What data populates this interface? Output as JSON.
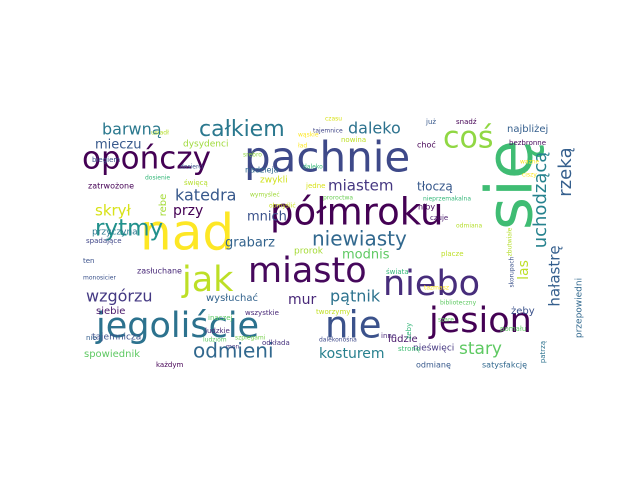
{
  "words": [
    {
      "text": "się",
      "color": "#3fbc73"
    },
    {
      "text": "nad",
      "color": "#fde725"
    },
    {
      "text": "pachnie",
      "color": "#3e4989"
    },
    {
      "text": "półmroku",
      "color": "#440154"
    },
    {
      "text": "opończy",
      "color": "#440154"
    },
    {
      "text": "miasto",
      "color": "#46085c"
    },
    {
      "text": "niebo",
      "color": "#472d7b"
    },
    {
      "text": "jesion",
      "color": "#440154"
    },
    {
      "text": "nie",
      "color": "#3b528b"
    },
    {
      "text": "jegoliście",
      "color": "#2c728e"
    },
    {
      "text": "jak",
      "color": "#bddf26"
    },
    {
      "text": "coś",
      "color": "#90d743"
    },
    {
      "text": "całkiem",
      "color": "#2a788e"
    },
    {
      "text": "rytmy",
      "color": "#21918c"
    },
    {
      "text": "barwną",
      "color": "#2a788e"
    },
    {
      "text": "daleko",
      "color": "#2c728e"
    },
    {
      "text": "odmieni",
      "color": "#31688e"
    },
    {
      "text": "uchodzącą",
      "color": "#26828e"
    },
    {
      "text": "rzeką",
      "color": "#355f8d"
    },
    {
      "text": "niewiasty",
      "color": "#31688e"
    },
    {
      "text": "katedra",
      "color": "#38598c"
    },
    {
      "text": "miastem",
      "color": "#453781"
    },
    {
      "text": "wzgórzu",
      "color": "#443983"
    },
    {
      "text": "pątnik",
      "color": "#2c728e"
    },
    {
      "text": "stary",
      "color": "#5ec962"
    },
    {
      "text": "hałastrę",
      "color": "#355f8d"
    },
    {
      "text": "kosturem",
      "color": "#27808e"
    },
    {
      "text": "mieczu",
      "color": "#38598c"
    },
    {
      "text": "skrył",
      "color": "#d8e219"
    },
    {
      "text": "przy",
      "color": "#440154"
    },
    {
      "text": "mnich",
      "color": "#3b528b"
    },
    {
      "text": "grabarz",
      "color": "#33638d"
    },
    {
      "text": "mur",
      "color": "#482878"
    },
    {
      "text": "las",
      "color": "#bddf26"
    },
    {
      "text": "modnis",
      "color": "#5ec962"
    },
    {
      "text": "tłoczą",
      "color": "#38598c"
    },
    {
      "text": "najbliżej",
      "color": "#355f8d"
    },
    {
      "text": "dysydenci",
      "color": "#9fda3a"
    },
    {
      "text": "nadzieja",
      "color": "#31688e"
    },
    {
      "text": "rebe",
      "color": "#a5db36"
    },
    {
      "text": "zwykli",
      "color": "#d0e11c"
    },
    {
      "text": "zatrwożone",
      "color": "#440154"
    },
    {
      "text": "przyczyna",
      "color": "#2a788e"
    },
    {
      "text": "tajemnicza",
      "color": "#3b528b"
    },
    {
      "text": "siebie",
      "color": "#48186a"
    },
    {
      "text": "wysłuchać",
      "color": "#33638d"
    },
    {
      "text": "prorok",
      "color": "#a5db36"
    },
    {
      "text": "ludzie",
      "color": "#481769"
    },
    {
      "text": "żeby",
      "color": "#3b528b"
    },
    {
      "text": "spowiednik",
      "color": "#5ec962"
    },
    {
      "text": "nieświęci",
      "color": "#453781"
    },
    {
      "text": "przepowiedni",
      "color": "#31688e"
    },
    {
      "text": "zasłuchane",
      "color": "#482878"
    },
    {
      "text": "satysfakcję",
      "color": "#31688e"
    },
    {
      "text": "odmianę",
      "color": "#38598c"
    },
    {
      "text": "każdym",
      "color": "#440154"
    },
    {
      "text": "wszystkie",
      "color": "#482878"
    },
    {
      "text": "odkłada",
      "color": "#46327e"
    },
    {
      "text": "inaczej",
      "color": "#5ec962"
    },
    {
      "text": "biegiem",
      "color": "#3b528b"
    },
    {
      "text": "spadające",
      "color": "#404688"
    },
    {
      "text": "niby",
      "color": "#46085c"
    },
    {
      "text": "czuje",
      "color": "#48186a"
    },
    {
      "text": "choć",
      "color": "#440154"
    },
    {
      "text": "bezbronne",
      "color": "#46085c"
    },
    {
      "text": "snadź",
      "color": "#440154"
    },
    {
      "text": "już",
      "color": "#38598c"
    },
    {
      "text": "świata",
      "color": "#35b779"
    },
    {
      "text": "patrzą",
      "color": "#2c728e"
    },
    {
      "text": "inne",
      "color": "#482878"
    },
    {
      "text": "ludzkie",
      "color": "#482878"
    },
    {
      "text": "tworzymy",
      "color": "#c2df23"
    },
    {
      "text": "pomału",
      "color": "#5ec962"
    },
    {
      "text": "placze",
      "color": "#bddf26"
    },
    {
      "text": "stronę",
      "color": "#3fbc73"
    },
    {
      "text": "nowina",
      "color": "#bddf26"
    },
    {
      "text": "jedne",
      "color": "#d8e219"
    },
    {
      "text": "święcą",
      "color": "#b5de2b"
    },
    {
      "text": "szpiegami",
      "color": "#7ad151"
    },
    {
      "text": "ten",
      "color": "#3b528b"
    },
    {
      "text": "żeby",
      "color": "#35b779"
    },
    {
      "text": "nie",
      "color": "#355f8d"
    },
    {
      "text": "zbutwiałe",
      "color": "#b5de2b"
    },
    {
      "text": "odmiana",
      "color": "#b5de2b"
    },
    {
      "text": "biblioteczny",
      "color": "#5ec962"
    },
    {
      "text": "ciszy",
      "color": "#fde725"
    },
    {
      "text": "nieprzemakalna",
      "color": "#35b779"
    },
    {
      "text": "proroctwa",
      "color": "#6ece58"
    },
    {
      "text": "tajemnice",
      "color": "#404688"
    },
    {
      "text": "usiadł",
      "color": "#b5de2b"
    },
    {
      "text": "ład",
      "color": "#fde725"
    },
    {
      "text": "wąskie",
      "color": "#fde725"
    },
    {
      "text": "czasu",
      "color": "#d8e219"
    },
    {
      "text": "obmyślić",
      "color": "#c8e020"
    },
    {
      "text": "wymyśleć",
      "color": "#a0da39"
    },
    {
      "text": "srebro",
      "color": "#90d743"
    },
    {
      "text": "dosierci",
      "color": "#3b528b"
    },
    {
      "text": "dosienie",
      "color": "#35b779"
    },
    {
      "text": "daleko",
      "color": "#35b779"
    },
    {
      "text": "monosicier",
      "color": "#3b528b"
    },
    {
      "text": "ludziom",
      "color": "#5ec962"
    },
    {
      "text": "mon",
      "color": "#453781"
    },
    {
      "text": "wazne",
      "color": "#fde725"
    },
    {
      "text": "skorupach",
      "color": "#3b528b"
    },
    {
      "text": "tazmasz",
      "color": "#fde725"
    },
    {
      "text": "szare",
      "color": "#5ec962"
    },
    {
      "text": "dalekonośna",
      "color": "#3e4989"
    }
  ]
}
